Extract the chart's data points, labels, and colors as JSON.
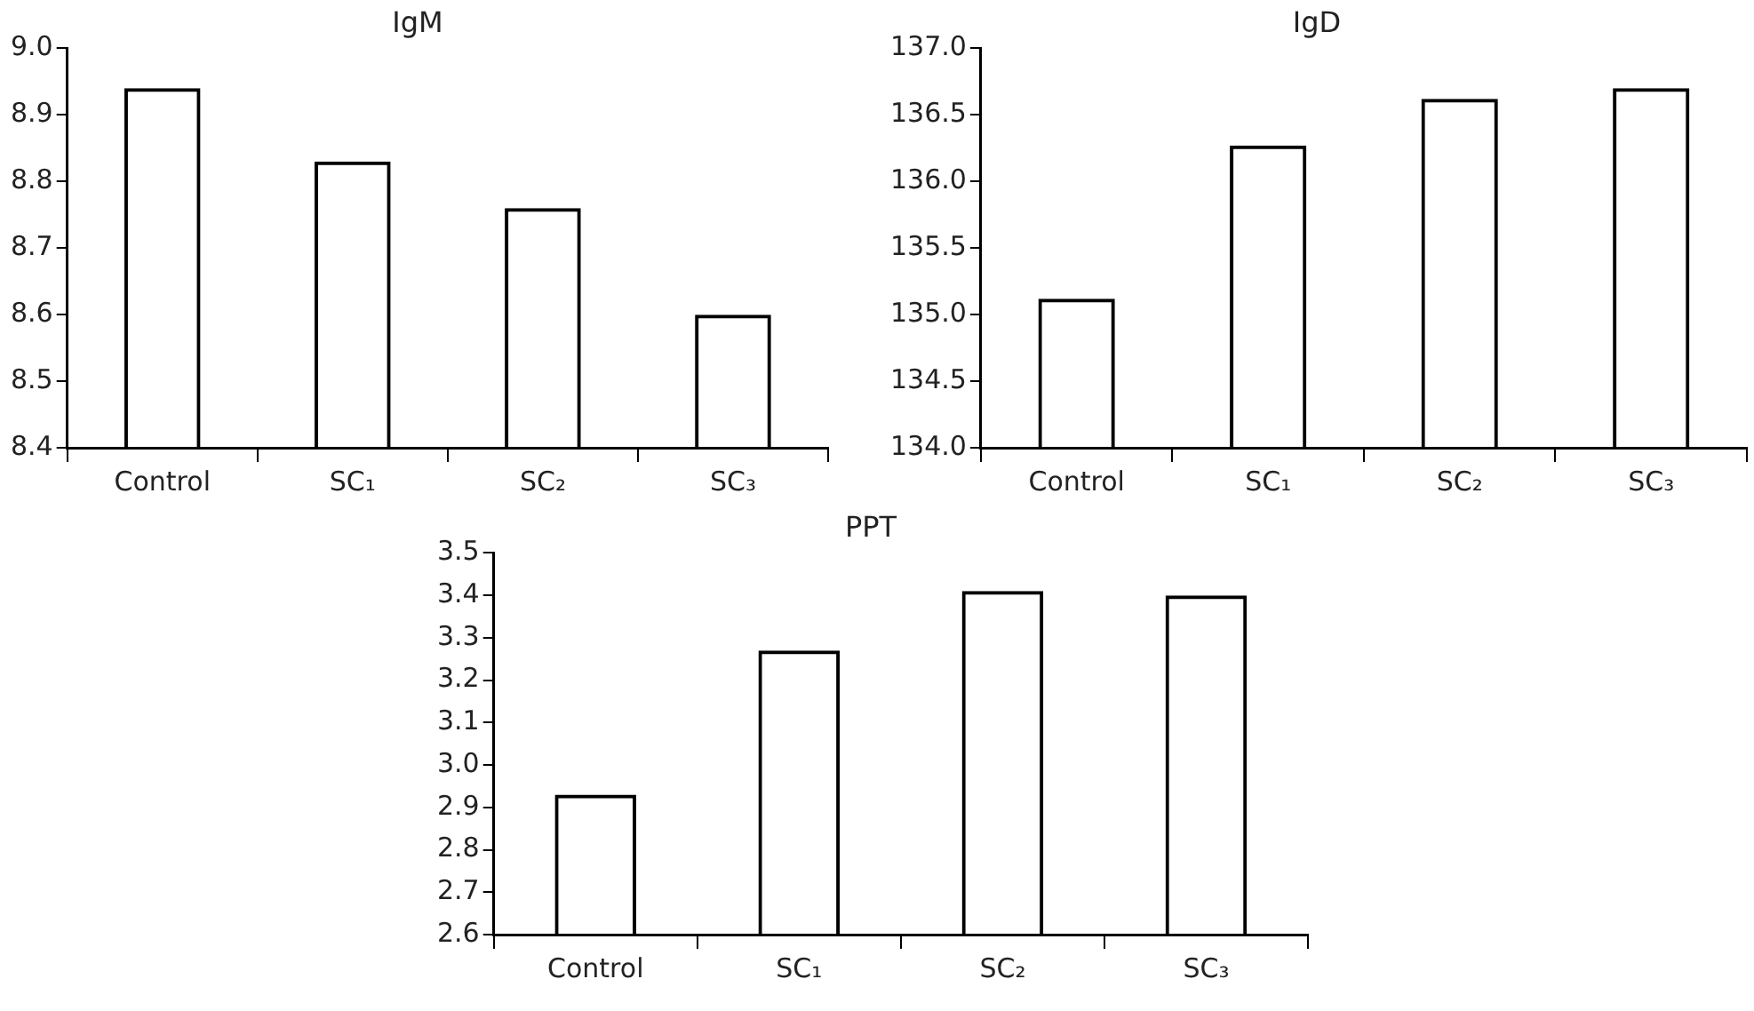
{
  "chart_data": [
    {
      "type": "bar",
      "title": "IgM",
      "categories": [
        "Control",
        "SC₁",
        "SC₂",
        "SC₃"
      ],
      "values": [
        8.94,
        8.83,
        8.76,
        8.6
      ],
      "color": "#000000",
      "ylim": [
        8.4,
        9.0
      ],
      "yticks": [
        {
          "value": 8.4,
          "label": "8.4"
        },
        {
          "value": 8.5,
          "label": "8.5"
        },
        {
          "value": 8.6,
          "label": "8.6"
        },
        {
          "value": 8.7,
          "label": "8.7"
        },
        {
          "value": 8.8,
          "label": "8.8"
        },
        {
          "value": 8.9,
          "label": "8.9"
        },
        {
          "value": 9.0,
          "label": "9.0"
        }
      ],
      "grid": false,
      "legend": false
    },
    {
      "type": "bar",
      "title": "IgD",
      "categories": [
        "Control",
        "SC₁",
        "SC₂",
        "SC₃"
      ],
      "values": [
        135.12,
        136.27,
        136.62,
        136.7
      ],
      "color": "#000000",
      "ylim": [
        134.0,
        137.0
      ],
      "yticks": [
        {
          "value": 134.0,
          "label": "134.0"
        },
        {
          "value": 134.5,
          "label": "134.5"
        },
        {
          "value": 135.0,
          "label": "135.0"
        },
        {
          "value": 135.5,
          "label": "135.5"
        },
        {
          "value": 136.0,
          "label": "136.0"
        },
        {
          "value": 136.5,
          "label": "136.5"
        },
        {
          "value": 137.0,
          "label": "137.0"
        }
      ],
      "grid": false,
      "legend": false
    },
    {
      "type": "bar",
      "title": "PPT",
      "categories": [
        "Control",
        "SC₁",
        "SC₂",
        "SC₃"
      ],
      "values": [
        2.93,
        3.27,
        3.41,
        3.4
      ],
      "color": "#000000",
      "ylim": [
        2.6,
        3.5
      ],
      "yticks": [
        {
          "value": 2.6,
          "label": "2.6"
        },
        {
          "value": 2.7,
          "label": "2.7"
        },
        {
          "value": 2.8,
          "label": "2.8"
        },
        {
          "value": 2.9,
          "label": "2.9"
        },
        {
          "value": 3.0,
          "label": "3.0"
        },
        {
          "value": 3.1,
          "label": "3.1"
        },
        {
          "value": 3.2,
          "label": "3.2"
        },
        {
          "value": 3.3,
          "label": "3.3"
        },
        {
          "value": 3.4,
          "label": "3.4"
        },
        {
          "value": 3.5,
          "label": "3.5"
        }
      ],
      "grid": false,
      "legend": false
    }
  ]
}
